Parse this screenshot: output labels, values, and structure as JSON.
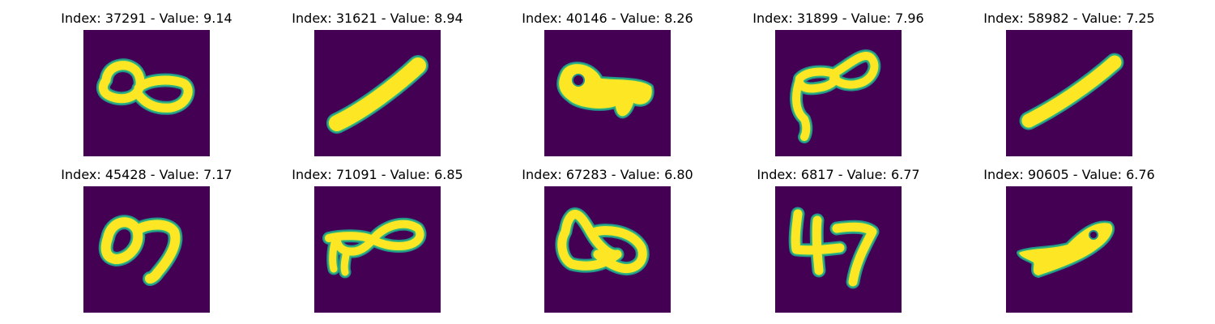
{
  "colors": {
    "background": "#440154",
    "mid": "#21918c",
    "edge": "#35b779",
    "stroke": "#fde725"
  },
  "panels": [
    {
      "title": "Index: 37291 - Value: 9.14",
      "glyph": "loops-pair",
      "image_description": "handwritten figure-eight style double loop"
    },
    {
      "title": "Index: 31621 - Value: 8.94",
      "glyph": "diagonal-bar",
      "image_description": "thick diagonal stroke rising to the right"
    },
    {
      "title": "Index: 40146 - Value: 8.26",
      "glyph": "blob-key",
      "image_description": "filled blob shape with a small hole"
    },
    {
      "title": "Index: 31899 - Value: 7.96",
      "glyph": "loops-tail",
      "image_description": "double loop with a descending tail on the left"
    },
    {
      "title": "Index: 58982 - Value: 7.25",
      "glyph": "diagonal-bar-thin",
      "image_description": "diagonal stroke rising to the right"
    },
    {
      "title": "Index: 45428 - Value: 7.17",
      "glyph": "loop-hook",
      "image_description": "oval loop followed by a hooked stroke"
    },
    {
      "title": "Index: 71091 - Value: 6.85",
      "glyph": "loops-legs",
      "image_description": "double loop with short legs underneath"
    },
    {
      "title": "Index: 67283 - Value: 6.80",
      "glyph": "bowtie",
      "image_description": "bowtie shaped pair of loops"
    },
    {
      "title": "Index: 6817 - Value: 6.77",
      "glyph": "four-like",
      "image_description": "stroke resembling the digits 4 and 7 joined"
    },
    {
      "title": "Index: 90605 - Value: 6.76",
      "glyph": "fish",
      "image_description": "elongated shape with a loop at the right end"
    }
  ]
}
